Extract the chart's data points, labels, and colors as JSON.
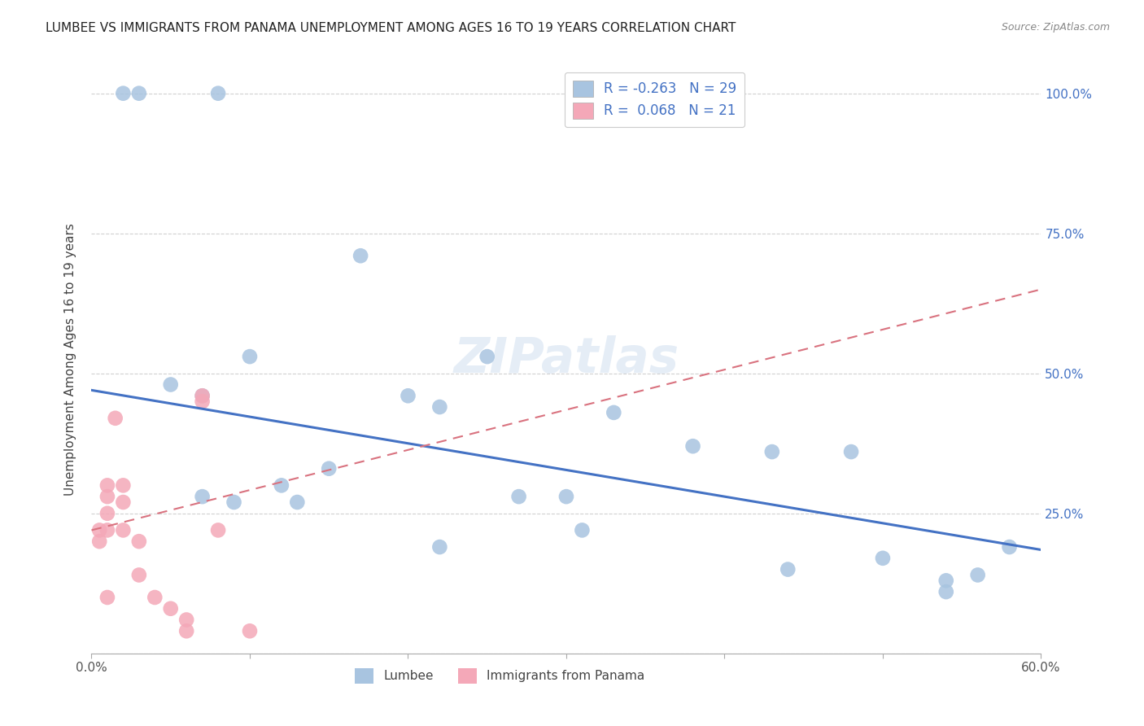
{
  "title": "LUMBEE VS IMMIGRANTS FROM PANAMA UNEMPLOYMENT AMONG AGES 16 TO 19 YEARS CORRELATION CHART",
  "source": "Source: ZipAtlas.com",
  "ylabel": "Unemployment Among Ages 16 to 19 years",
  "watermark": "ZIPatlas",
  "xlim": [
    0.0,
    0.6
  ],
  "ylim": [
    0.0,
    1.05
  ],
  "xticks": [
    0.0,
    0.1,
    0.2,
    0.3,
    0.4,
    0.5,
    0.6
  ],
  "xticklabels": [
    "0.0%",
    "",
    "",
    "",
    "",
    "",
    "60.0%"
  ],
  "yticks_right": [
    0.0,
    0.25,
    0.5,
    0.75,
    1.0
  ],
  "yticklabels_right": [
    "",
    "25.0%",
    "50.0%",
    "75.0%",
    "100.0%"
  ],
  "lumbee_r": "-0.263",
  "lumbee_n": "29",
  "panama_r": "0.068",
  "panama_n": "21",
  "lumbee_color": "#a8c4e0",
  "panama_color": "#f4a8b8",
  "lumbee_line_color": "#4472c4",
  "panama_line_color": "#d9727f",
  "grid_color": "#d0d0d0",
  "lumbee_x": [
    0.02,
    0.03,
    0.08,
    0.05,
    0.07,
    0.07,
    0.09,
    0.1,
    0.12,
    0.13,
    0.15,
    0.17,
    0.2,
    0.22,
    0.22,
    0.25,
    0.27,
    0.3,
    0.31,
    0.33,
    0.38,
    0.43,
    0.44,
    0.48,
    0.5,
    0.54,
    0.54,
    0.56,
    0.58
  ],
  "lumbee_y": [
    1.0,
    1.0,
    1.0,
    0.48,
    0.46,
    0.28,
    0.27,
    0.53,
    0.3,
    0.27,
    0.33,
    0.71,
    0.46,
    0.44,
    0.19,
    0.53,
    0.28,
    0.28,
    0.22,
    0.43,
    0.37,
    0.36,
    0.15,
    0.36,
    0.17,
    0.13,
    0.11,
    0.14,
    0.19
  ],
  "panama_x": [
    0.005,
    0.005,
    0.01,
    0.01,
    0.01,
    0.01,
    0.01,
    0.015,
    0.02,
    0.02,
    0.02,
    0.03,
    0.03,
    0.04,
    0.05,
    0.06,
    0.06,
    0.07,
    0.07,
    0.08,
    0.1
  ],
  "panama_y": [
    0.22,
    0.2,
    0.3,
    0.28,
    0.25,
    0.22,
    0.1,
    0.42,
    0.3,
    0.27,
    0.22,
    0.2,
    0.14,
    0.1,
    0.08,
    0.06,
    0.04,
    0.46,
    0.45,
    0.22,
    0.04
  ],
  "lumbee_line_x": [
    0.0,
    0.6
  ],
  "lumbee_line_y": [
    0.47,
    0.185
  ],
  "panama_line_x": [
    0.0,
    0.6
  ],
  "panama_line_y": [
    0.22,
    0.65
  ]
}
